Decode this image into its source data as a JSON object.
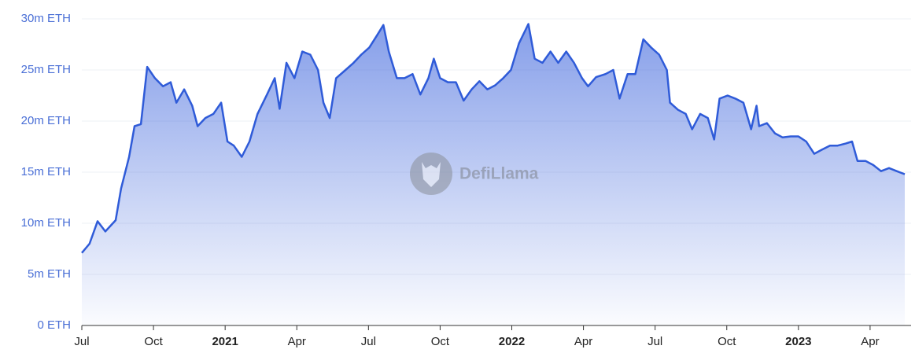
{
  "chart_data": {
    "type": "area",
    "watermark": "DefiLlama",
    "color": "#2f5bd8",
    "grid": true,
    "xlim": [
      2020.5,
      2023.371
    ],
    "xticks": [
      {
        "value": 2020.5,
        "label": "Jul"
      },
      {
        "value": 2020.75,
        "label": "Oct"
      },
      2021,
      {
        "value": 2021.25,
        "label": "Apr"
      },
      {
        "value": 2021.5,
        "label": "Jul"
      },
      {
        "value": 2021.75,
        "label": "Oct"
      },
      2022,
      {
        "value": 2022.25,
        "label": "Apr"
      },
      {
        "value": 2022.5,
        "label": "Jul"
      },
      {
        "value": 2022.75,
        "label": "Oct"
      },
      2023,
      {
        "value": 2023.25,
        "label": "Apr"
      }
    ],
    "ylim": [
      0,
      30
    ],
    "yticks": [
      {
        "value": 0,
        "label": "0 ETH"
      },
      {
        "value": 5,
        "label": "5m ETH"
      },
      {
        "value": 10,
        "label": "10m ETH"
      },
      {
        "value": 15,
        "label": "15m ETH"
      },
      {
        "value": 20,
        "label": "20m ETH"
      },
      {
        "value": 25,
        "label": "25m ETH"
      },
      {
        "value": 30,
        "label": "30m ETH"
      }
    ],
    "x": [
      2020.5,
      2020.527,
      2020.555,
      2020.582,
      2020.618,
      2020.637,
      2020.665,
      2020.684,
      2020.706,
      2020.728,
      2020.755,
      2020.783,
      2020.81,
      2020.83,
      2020.857,
      2020.885,
      2020.904,
      2020.931,
      2020.959,
      2020.986,
      2021.008,
      2021.03,
      2021.058,
      2021.085,
      2021.113,
      2021.146,
      2021.173,
      2021.19,
      2021.214,
      2021.242,
      2021.269,
      2021.297,
      2021.324,
      2021.343,
      2021.365,
      2021.387,
      2021.42,
      2021.448,
      2021.475,
      2021.503,
      2021.53,
      2021.552,
      2021.571,
      2021.599,
      2021.626,
      2021.654,
      2021.681,
      2021.709,
      2021.728,
      2021.75,
      2021.777,
      2021.805,
      2021.832,
      2021.86,
      2021.887,
      2021.915,
      2021.942,
      2021.97,
      2021.997,
      2022.025,
      2022.058,
      2022.08,
      2022.107,
      2022.135,
      2022.162,
      2022.19,
      2022.217,
      2022.245,
      2022.266,
      2022.294,
      2022.327,
      2022.354,
      2022.376,
      2022.404,
      2022.431,
      2022.459,
      2022.486,
      2022.514,
      2022.541,
      2022.552,
      2022.58,
      2022.607,
      2022.629,
      2022.657,
      2022.684,
      2022.706,
      2022.725,
      2022.753,
      2022.78,
      2022.808,
      2022.835,
      2022.854,
      2022.863,
      2022.89,
      2022.918,
      2022.945,
      2022.973,
      2023.0,
      2023.027,
      2023.055,
      2023.082,
      2023.11,
      2023.137,
      2023.165,
      2023.187,
      2023.206,
      2023.234,
      2023.261,
      2023.288,
      2023.316,
      2023.343,
      2023.371
    ],
    "values": [
      7.1,
      8.0,
      10.2,
      9.2,
      10.3,
      13.4,
      16.5,
      19.5,
      19.7,
      25.3,
      24.2,
      23.4,
      23.8,
      21.8,
      23.1,
      21.5,
      19.5,
      20.3,
      20.7,
      21.8,
      18.0,
      17.6,
      16.5,
      18.0,
      20.7,
      22.6,
      24.2,
      21.2,
      25.7,
      24.2,
      26.8,
      26.5,
      25.0,
      21.8,
      20.3,
      24.2,
      25.0,
      25.7,
      26.5,
      27.2,
      28.4,
      29.4,
      26.8,
      24.2,
      24.2,
      24.6,
      22.6,
      24.2,
      26.1,
      24.2,
      23.8,
      23.8,
      22.0,
      23.1,
      23.9,
      23.1,
      23.5,
      24.2,
      25.0,
      27.6,
      29.5,
      26.1,
      25.7,
      26.8,
      25.7,
      26.8,
      25.7,
      24.2,
      23.4,
      24.3,
      24.6,
      25.0,
      22.2,
      24.6,
      24.6,
      28.0,
      27.2,
      26.5,
      25.0,
      21.8,
      21.1,
      20.7,
      19.2,
      20.7,
      20.3,
      18.2,
      22.2,
      22.5,
      22.2,
      21.8,
      19.2,
      21.5,
      19.5,
      19.8,
      18.8,
      18.4,
      18.5,
      18.5,
      18.0,
      16.8,
      17.2,
      17.6,
      17.6,
      17.8,
      18.0,
      16.1,
      16.1,
      15.7,
      15.1,
      15.4,
      15.1,
      14.8
    ]
  }
}
